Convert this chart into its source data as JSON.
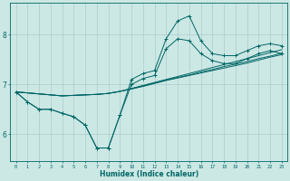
{
  "xlabel": "Humidex (Indice chaleur)",
  "background_color": "#cce8e4",
  "line_color": "#006666",
  "grid_color": "#aacccc",
  "x_values": [
    0,
    1,
    2,
    3,
    4,
    5,
    6,
    7,
    8,
    9,
    10,
    11,
    12,
    13,
    14,
    15,
    16,
    17,
    18,
    19,
    20,
    21,
    22,
    23
  ],
  "y_main": [
    6.85,
    6.65,
    6.5,
    6.5,
    6.42,
    6.35,
    6.18,
    5.72,
    5.72,
    6.38,
    7.1,
    7.22,
    7.28,
    7.92,
    8.28,
    8.38,
    7.88,
    7.62,
    7.58,
    7.58,
    7.68,
    7.78,
    7.82,
    7.78
  ],
  "y_line2": [
    6.85,
    6.65,
    6.5,
    6.5,
    6.42,
    6.35,
    6.18,
    5.72,
    5.72,
    6.38,
    7.0,
    7.12,
    7.18,
    7.72,
    7.92,
    7.88,
    7.62,
    7.48,
    7.42,
    7.42,
    7.52,
    7.62,
    7.68,
    7.62
  ],
  "y_trend1": [
    6.85,
    6.83,
    6.81,
    6.79,
    6.77,
    6.78,
    6.79,
    6.8,
    6.82,
    6.86,
    6.92,
    6.98,
    7.04,
    7.1,
    7.16,
    7.22,
    7.28,
    7.34,
    7.4,
    7.46,
    7.52,
    7.58,
    7.64,
    7.7
  ],
  "y_trend2": [
    6.85,
    6.83,
    6.81,
    6.79,
    6.77,
    6.78,
    6.79,
    6.8,
    6.82,
    6.86,
    6.91,
    6.97,
    7.03,
    7.09,
    7.14,
    7.19,
    7.25,
    7.3,
    7.36,
    7.41,
    7.46,
    7.52,
    7.57,
    7.63
  ],
  "y_trend3": [
    6.85,
    6.83,
    6.81,
    6.79,
    6.77,
    6.78,
    6.79,
    6.8,
    6.82,
    6.86,
    6.91,
    6.96,
    7.02,
    7.08,
    7.13,
    7.18,
    7.23,
    7.28,
    7.33,
    7.38,
    7.43,
    7.49,
    7.55,
    7.6
  ],
  "ylim": [
    5.45,
    8.65
  ],
  "xlim": [
    -0.5,
    23.5
  ],
  "yticks": [
    6,
    7,
    8
  ],
  "xticks": [
    0,
    1,
    2,
    3,
    4,
    5,
    6,
    7,
    8,
    9,
    10,
    11,
    12,
    13,
    14,
    15,
    16,
    17,
    18,
    19,
    20,
    21,
    22,
    23
  ],
  "xtick_labels": [
    "0",
    "1",
    "2",
    "3",
    "4",
    "5",
    "6",
    "7",
    "8",
    "9",
    "10",
    "11",
    "12",
    "13",
    "14",
    "15",
    "16",
    "17",
    "18",
    "19",
    "20",
    "21",
    "22",
    "23"
  ]
}
